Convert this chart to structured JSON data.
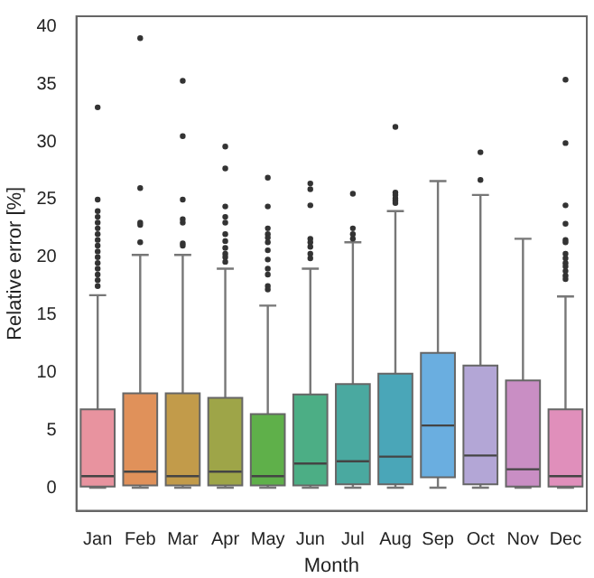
{
  "chart_data": {
    "type": "box",
    "xlabel": "Month",
    "ylabel": "Relative error [%]",
    "categories": [
      "Jan",
      "Feb",
      "Mar",
      "Apr",
      "May",
      "Jun",
      "Jul",
      "Aug",
      "Sep",
      "Oct",
      "Nov",
      "Dec"
    ],
    "colors": [
      "#e8939f",
      "#e0915a",
      "#c29b4a",
      "#9ea548",
      "#5fb04a",
      "#4cae85",
      "#4aa9a0",
      "#4aa6b8",
      "#6aaee0",
      "#b3a6d6",
      "#c98ec4",
      "#e08fbb"
    ],
    "boxes": [
      {
        "low": 0,
        "q1": 0.1,
        "median": 1.0,
        "q3": 6.8,
        "high": 16.7,
        "outliers": [
          33,
          25,
          24,
          23.5,
          23,
          22.5,
          22,
          21.5,
          21,
          20.5,
          20,
          19.5,
          19,
          18.5,
          18,
          17.5
        ]
      },
      {
        "low": 0,
        "q1": 0.2,
        "median": 1.4,
        "q3": 8.2,
        "high": 20.2,
        "outliers": [
          39,
          26,
          23,
          22.8,
          21.3
        ]
      },
      {
        "low": 0,
        "q1": 0.2,
        "median": 1.0,
        "q3": 8.2,
        "high": 20.2,
        "outliers": [
          35.3,
          30.5,
          25,
          23.3,
          23,
          21.2,
          21
        ]
      },
      {
        "low": 0,
        "q1": 0.2,
        "median": 1.4,
        "q3": 7.8,
        "high": 19.0,
        "outliers": [
          29.6,
          27.7,
          24.4,
          23.5,
          23,
          22,
          21.4,
          20.8,
          20.3,
          20,
          19.6
        ]
      },
      {
        "low": 0,
        "q1": 0.2,
        "median": 1.0,
        "q3": 6.4,
        "high": 15.8,
        "outliers": [
          26.9,
          24.4,
          22.5,
          22,
          21.7,
          21.3,
          20.6,
          19.8,
          19,
          18.5,
          17.5,
          17.2
        ]
      },
      {
        "low": 0,
        "q1": 0.2,
        "median": 2.1,
        "q3": 8.1,
        "high": 19.0,
        "outliers": [
          26.4,
          25.9,
          24.5,
          21.6,
          21.3,
          20.9,
          20.3,
          19.9
        ]
      },
      {
        "low": 0,
        "q1": 0.3,
        "median": 2.3,
        "q3": 9.0,
        "high": 21.3,
        "outliers": [
          25.5,
          22.5,
          22.0,
          21.6
        ]
      },
      {
        "low": 0,
        "q1": 0.3,
        "median": 2.7,
        "q3": 9.9,
        "high": 24.0,
        "outliers": [
          31.3,
          25.6,
          25.4,
          25.1,
          24.9,
          24.7
        ]
      },
      {
        "low": 0,
        "q1": 0.9,
        "median": 5.4,
        "q3": 11.7,
        "high": 26.6
      },
      {
        "low": 0,
        "q1": 0.3,
        "median": 2.8,
        "q3": 10.6,
        "high": 25.4,
        "outliers": [
          29.1,
          26.7
        ]
      },
      {
        "low": 0,
        "q1": 0.1,
        "median": 1.6,
        "q3": 9.3,
        "high": 21.6
      },
      {
        "low": 0,
        "q1": 0.1,
        "median": 1.0,
        "q3": 6.8,
        "high": 16.6,
        "outliers": [
          35.4,
          29.9,
          24.5,
          22.9,
          21.5,
          21.3,
          20.3,
          19.9,
          19.5,
          19.2,
          18.8,
          18.4,
          18.1
        ]
      }
    ],
    "ylim": [
      -2,
      40.9
    ],
    "yticks": [
      0,
      5,
      10,
      15,
      20,
      25,
      30,
      35,
      40
    ],
    "grid": false
  }
}
